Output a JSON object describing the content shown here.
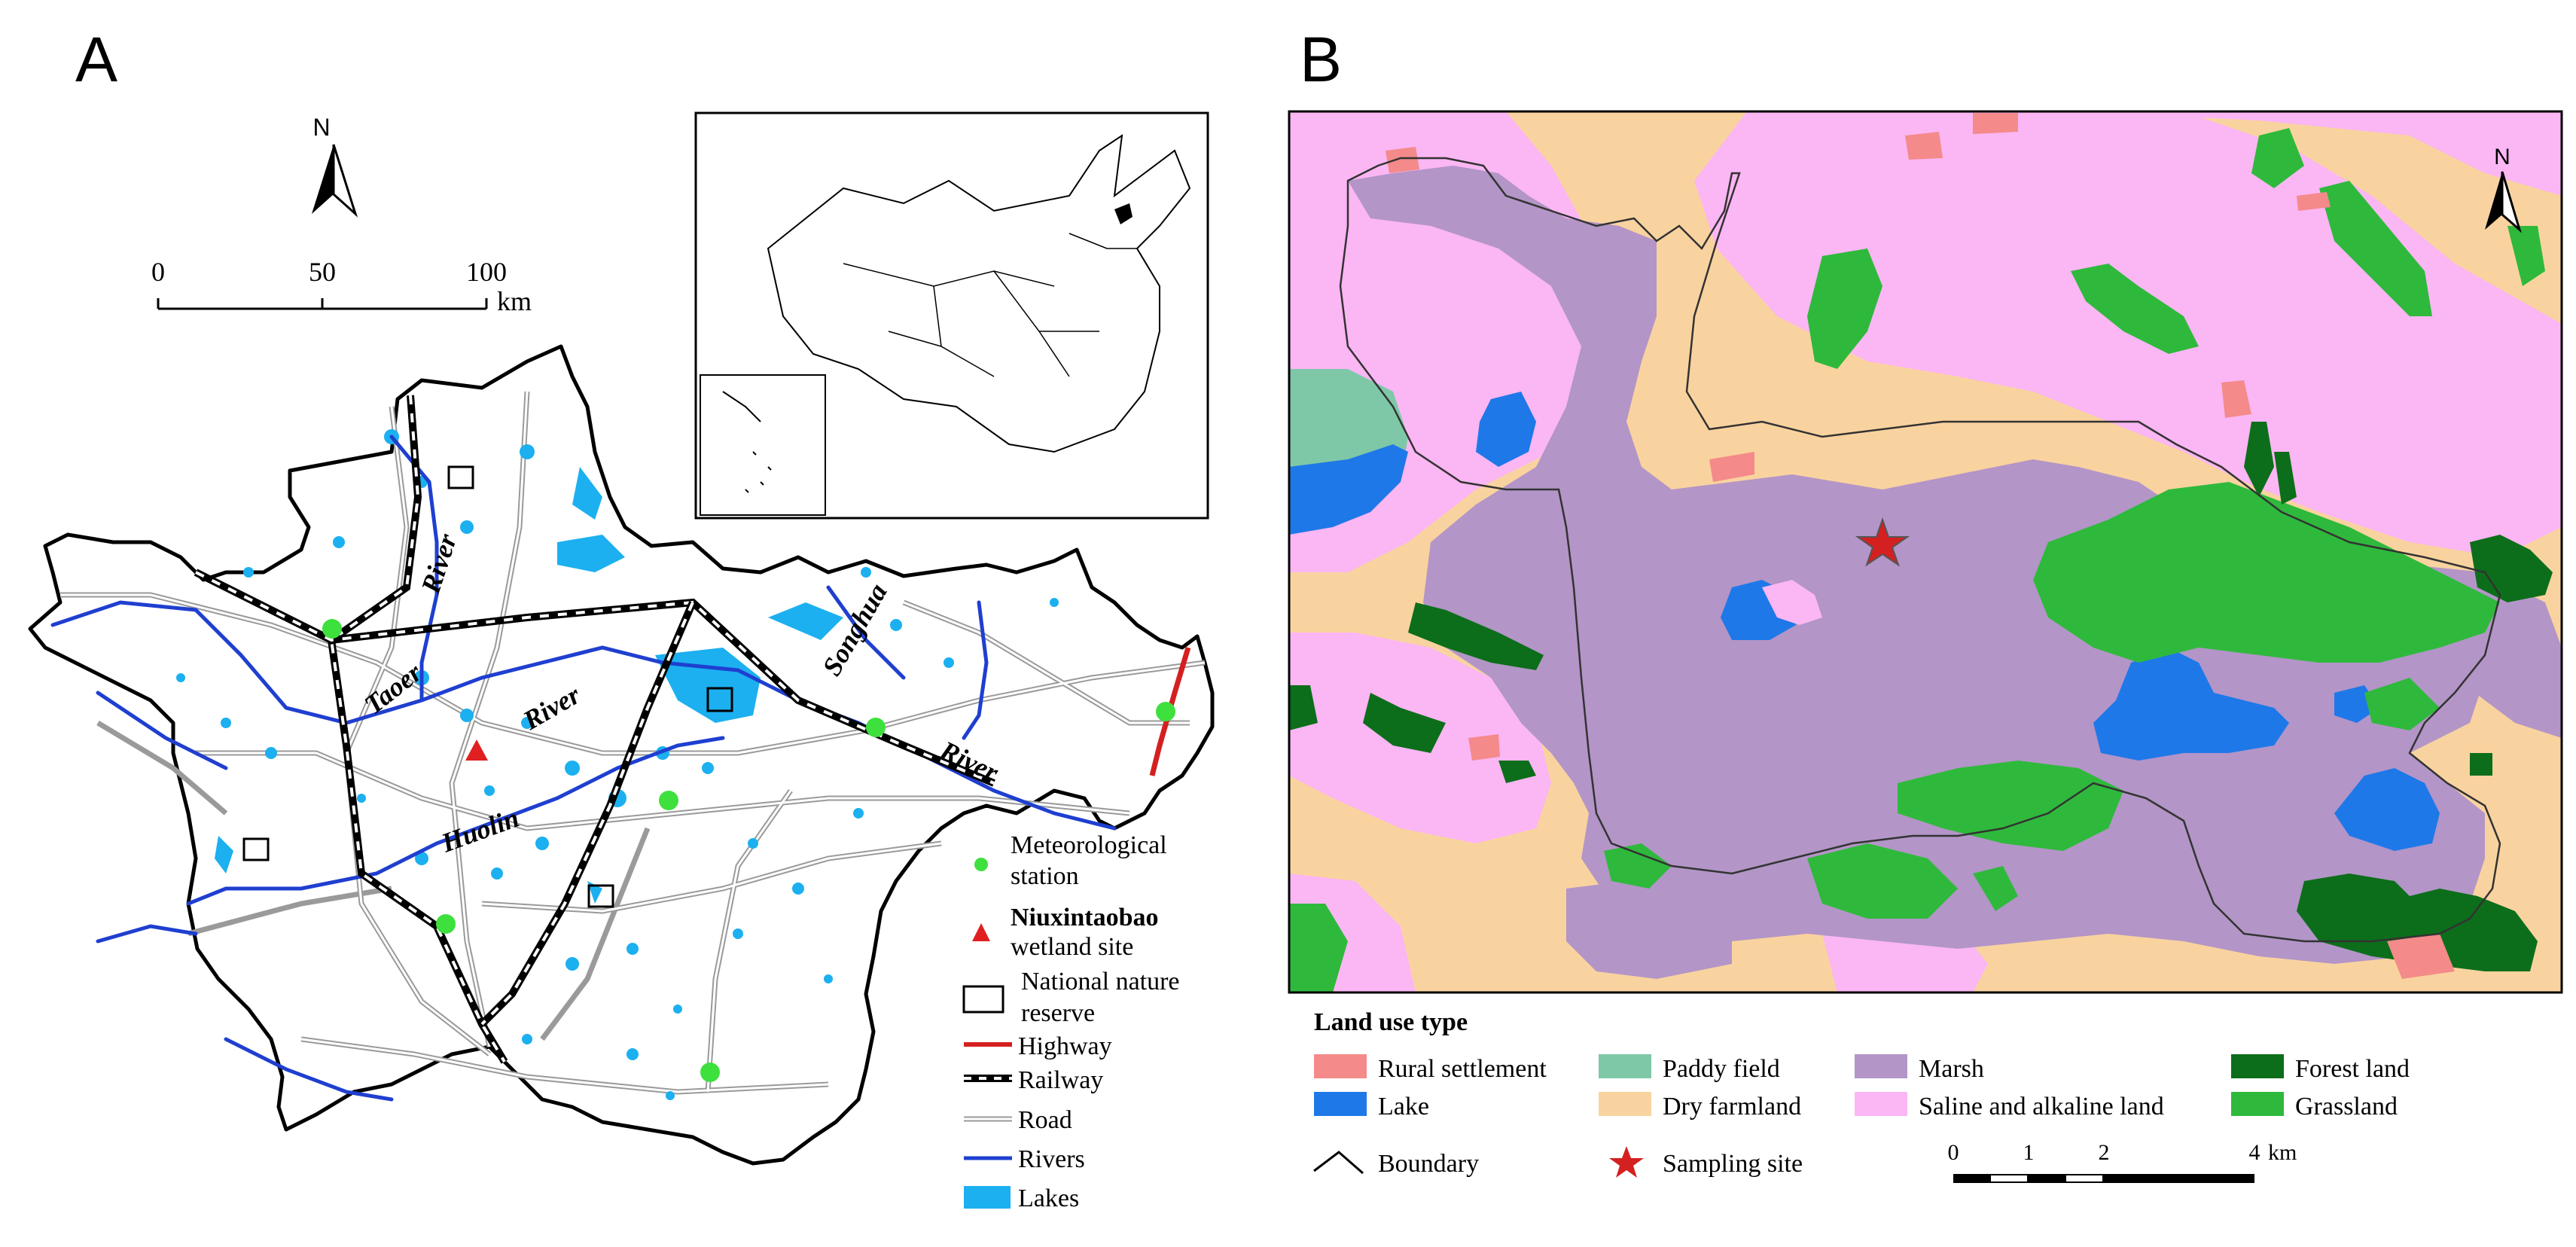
{
  "panel_a": {
    "letter": "A",
    "north": "N",
    "scale": {
      "ticks": [
        "0",
        "50",
        "100"
      ],
      "unit": "km"
    },
    "river_labels": [
      "River",
      "Taoer",
      "River",
      "Huolin",
      "Songhua",
      "River"
    ],
    "legend": {
      "met_station": [
        "Meteorological",
        "station"
      ],
      "wetland_site": [
        "Niuxintaobao",
        "wetland site"
      ],
      "reserve": [
        "National nature",
        "reserve"
      ],
      "highway": "Highway",
      "railway": "Railway",
      "road": "Road",
      "rivers": "Rivers",
      "lakes": "Lakes"
    }
  },
  "panel_b": {
    "letter": "B",
    "north": "N",
    "legend_title": "Land use type",
    "land_use": [
      {
        "label": "Rural settlement",
        "color": "#f48a8a"
      },
      {
        "label": "Lake",
        "color": "#1f78e8"
      },
      {
        "label": "Paddy field",
        "color": "#7ec8a8"
      },
      {
        "label": "Dry farmland",
        "color": "#f9d39f"
      },
      {
        "label": "Marsh",
        "color": "#b395c7"
      },
      {
        "label": "Saline and alkaline land",
        "color": "#fbb6f4"
      },
      {
        "label": "Forest land",
        "color": "#0c6e1a"
      },
      {
        "label": "Grassland",
        "color": "#2fb93c"
      }
    ],
    "boundary": "Boundary",
    "sampling_site": "Sampling site",
    "scale": {
      "ticks": [
        "0",
        "1",
        "2",
        "4"
      ],
      "unit": "km"
    }
  },
  "colors": {
    "lakes": "#1cb0f0",
    "rivers": "#1f3fd0",
    "highway": "#d42020",
    "met_station": "#3ee03e",
    "wetland_site": "#e02020",
    "star": "#d42020"
  }
}
